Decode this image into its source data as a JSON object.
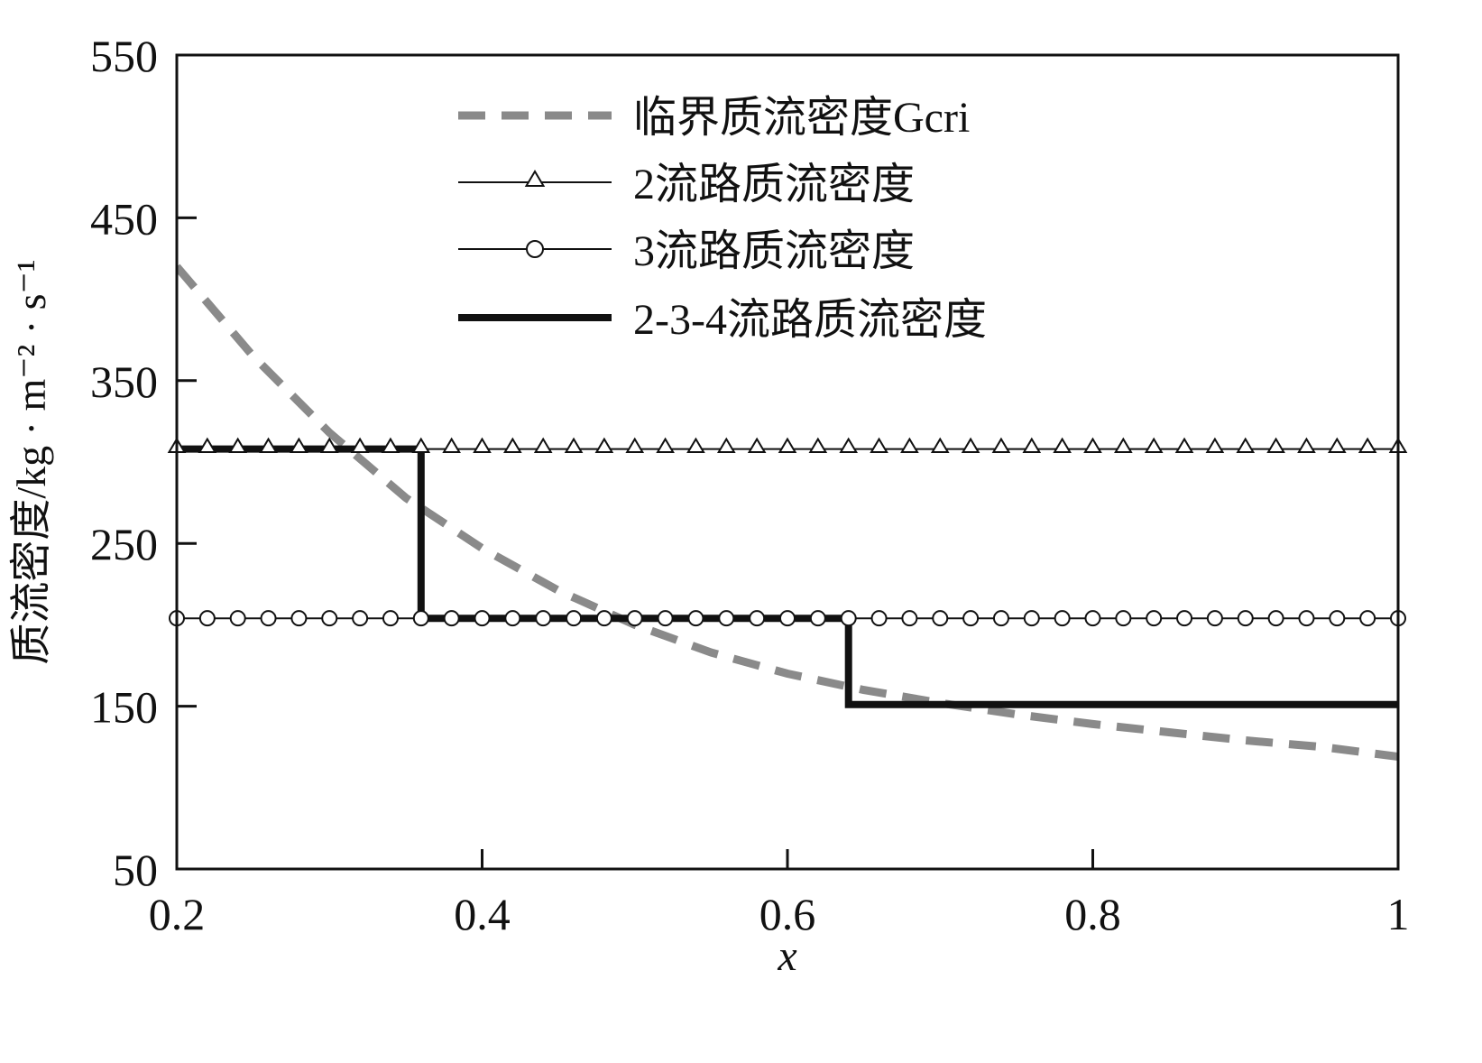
{
  "chart_data": {
    "type": "line",
    "title": "",
    "xlabel": "x",
    "ylabel": "质流密度/kg · m⁻² · s⁻¹",
    "xlim": [
      0.2,
      1.0
    ],
    "ylim": [
      50,
      550
    ],
    "x_ticks": [
      0.2,
      0.4,
      0.6,
      0.8,
      1.0
    ],
    "x_tick_labels": [
      "0.2",
      "0.4",
      "0.6",
      "0.8",
      "1"
    ],
    "y_ticks": [
      50,
      150,
      250,
      350,
      450,
      550
    ],
    "y_tick_labels": [
      "50",
      "150",
      "250",
      "350",
      "450",
      "550"
    ],
    "grid": false,
    "legend_position": "top-center",
    "series": [
      {
        "name": "临界质流密度Gcri",
        "style": "dashed",
        "color": "#8a8a8a",
        "marker": "none",
        "x": [
          0.2,
          0.25,
          0.3,
          0.35,
          0.4,
          0.45,
          0.5,
          0.55,
          0.6,
          0.65,
          0.7,
          0.75,
          0.8,
          0.85,
          0.9,
          0.95,
          1.0
        ],
        "y": [
          420,
          365,
          318,
          278,
          247,
          221,
          200,
          183,
          170,
          160,
          152,
          145,
          139,
          134,
          129,
          125,
          119
        ]
      },
      {
        "name": "2流路质流密度",
        "style": "solid-thin",
        "color": "#111111",
        "marker": "triangle",
        "x": [
          0.2,
          0.4,
          0.6,
          0.8,
          1.0
        ],
        "y": [
          308,
          308,
          308,
          308,
          308
        ]
      },
      {
        "name": "3流路质流密度",
        "style": "solid-thin",
        "color": "#111111",
        "marker": "circle",
        "x": [
          0.2,
          0.4,
          0.6,
          0.8,
          1.0
        ],
        "y": [
          204,
          204,
          204,
          204,
          204
        ]
      },
      {
        "name": "2-3-4流路质流密度",
        "style": "solid-thick",
        "color": "#111111",
        "marker": "none",
        "x": [
          0.2,
          0.36,
          0.36,
          0.64,
          0.64,
          1.0
        ],
        "y": [
          308,
          308,
          204,
          204,
          151,
          151
        ]
      }
    ]
  }
}
